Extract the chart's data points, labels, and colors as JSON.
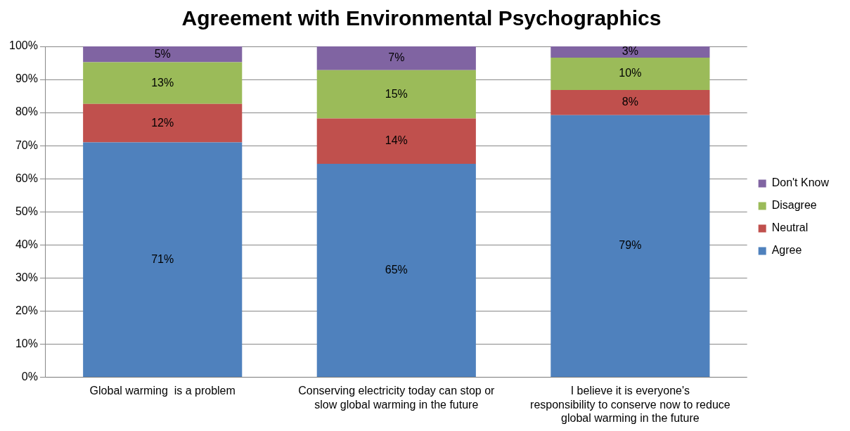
{
  "chart_data": {
    "type": "bar",
    "title": "Agreement with Environmental Psychographics",
    "stacked": true,
    "categories": [
      "Global warming  is a problem",
      "Conserving electricity today can stop or slow global warming in the future",
      "I believe it is everyone's responsibility to conserve now to reduce global warming in the future"
    ],
    "series": [
      {
        "name": "Agree",
        "color": "#4f81bd",
        "values": [
          71.0,
          64.5,
          79.2
        ],
        "value_labels": [
          "71%",
          "65%",
          "79%"
        ]
      },
      {
        "name": "Neutral",
        "color": "#c0504d",
        "values": [
          11.6,
          13.7,
          7.6
        ],
        "value_labels": [
          "12%",
          "14%",
          "8%"
        ]
      },
      {
        "name": "Disagree",
        "color": "#9bbb59",
        "values": [
          12.6,
          14.6,
          9.8
        ],
        "value_labels": [
          "13%",
          "15%",
          "10%"
        ]
      },
      {
        "name": "Don't Know",
        "color": "#8064a2",
        "values": [
          4.8,
          7.2,
          3.4
        ],
        "value_labels": [
          "5%",
          "7%",
          "3%"
        ]
      }
    ],
    "ylim": [
      0,
      100
    ],
    "yticks": [
      {
        "value": 0,
        "label": "0%"
      },
      {
        "value": 10,
        "label": "10%"
      },
      {
        "value": 20,
        "label": "20%"
      },
      {
        "value": 30,
        "label": "30%"
      },
      {
        "value": 40,
        "label": "40%"
      },
      {
        "value": 50,
        "label": "50%"
      },
      {
        "value": 60,
        "label": "60%"
      },
      {
        "value": 70,
        "label": "70%"
      },
      {
        "value": 80,
        "label": "80%"
      },
      {
        "value": 90,
        "label": "90%"
      },
      {
        "value": 100,
        "label": "100%"
      }
    ],
    "grid": "y",
    "legend": "right"
  }
}
